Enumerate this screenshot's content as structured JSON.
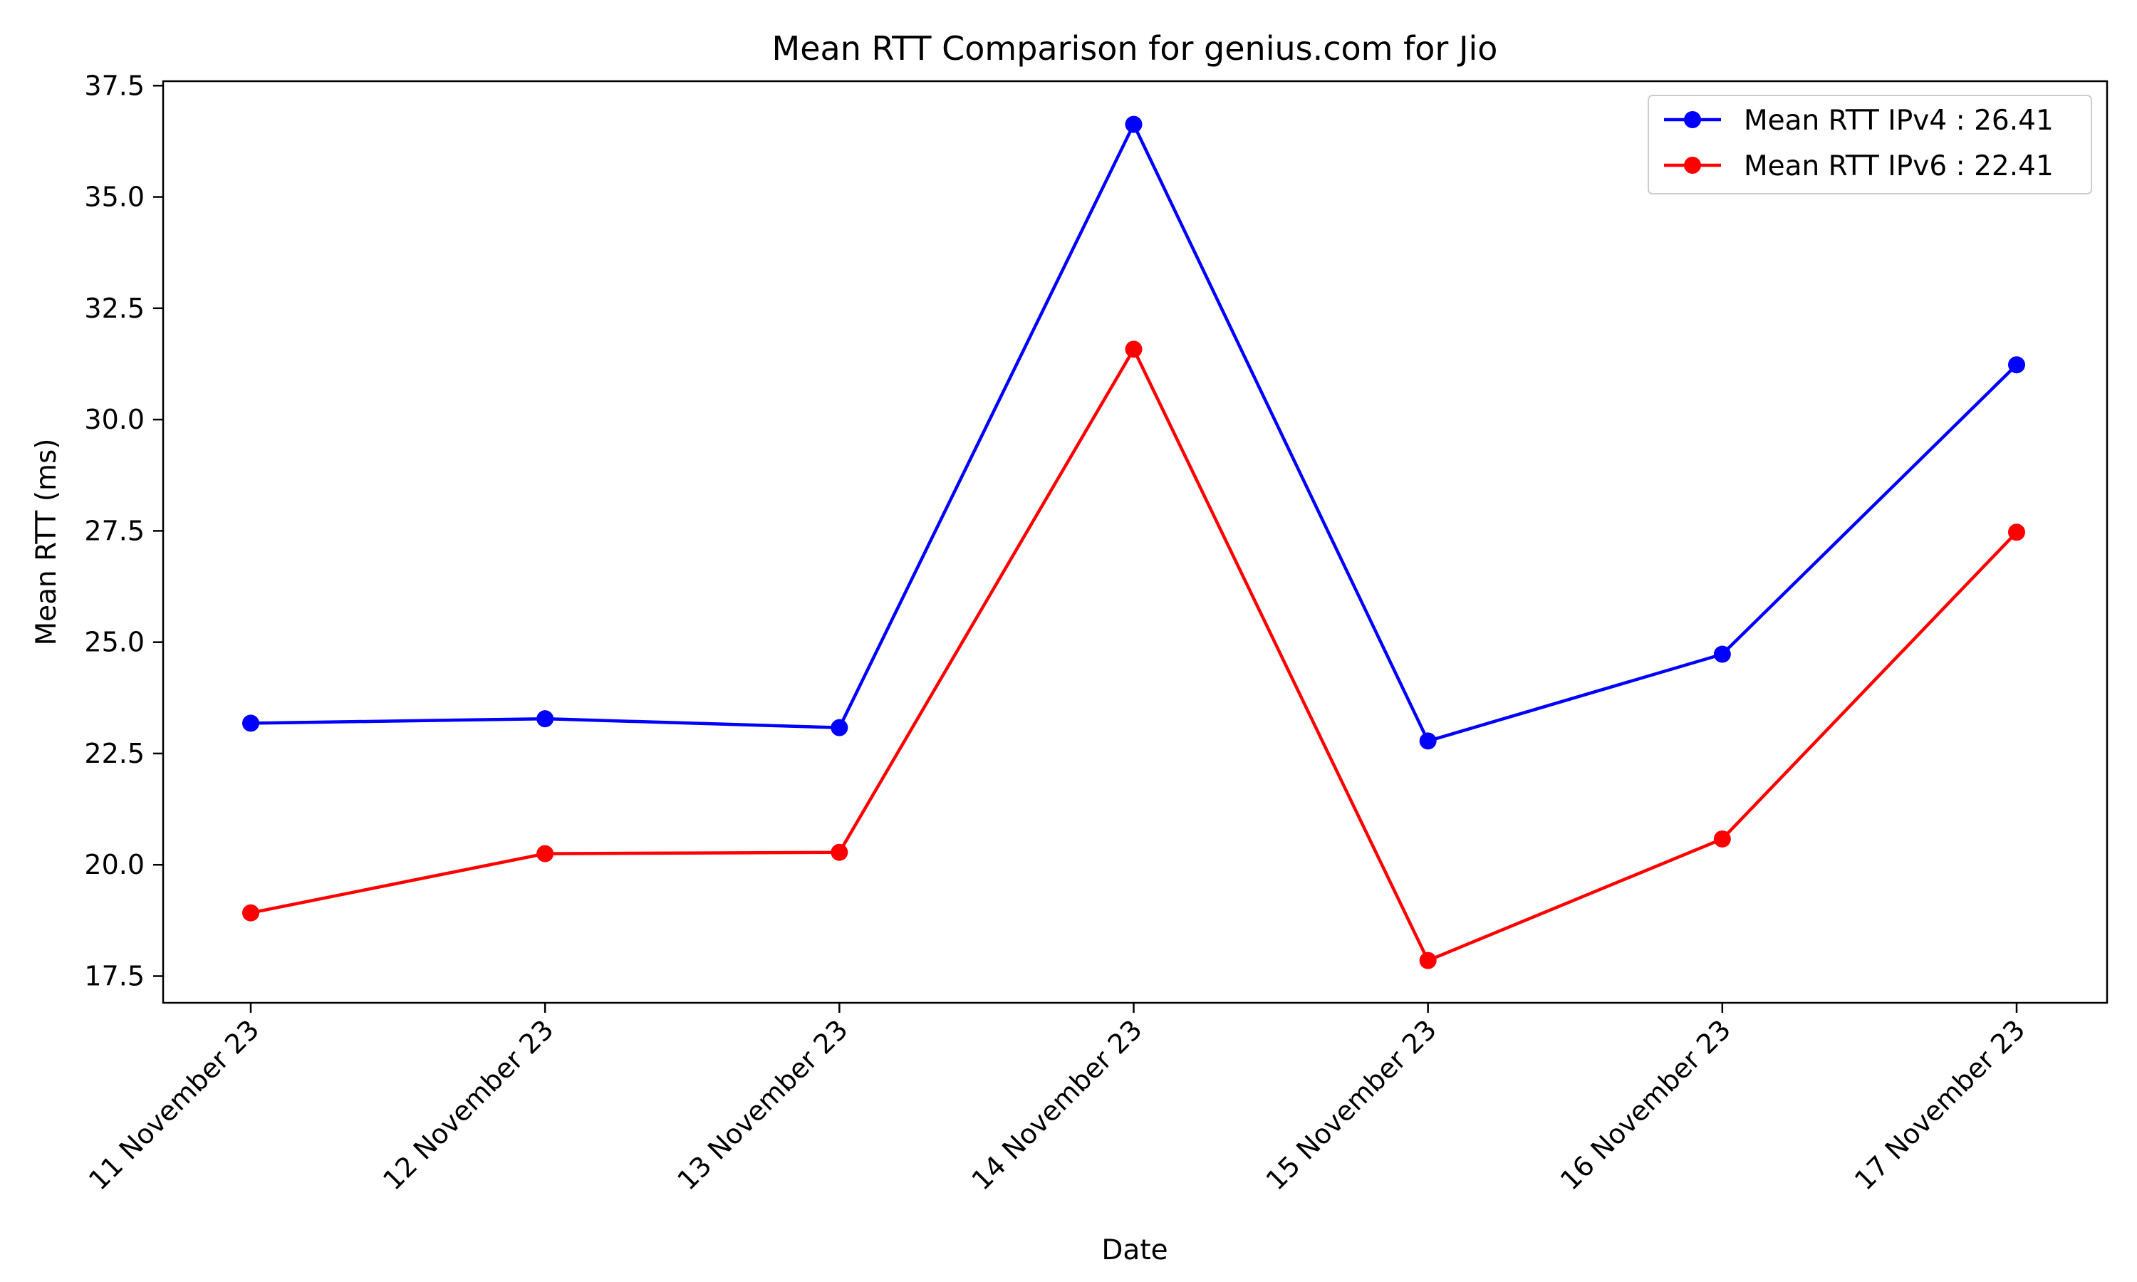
{
  "chart_data": {
    "type": "line",
    "title": "Mean RTT Comparison for genius.com for Jio",
    "xlabel": "Date",
    "ylabel": "Mean RTT (ms)",
    "categories": [
      "11 November 23",
      "12 November 23",
      "13 November 23",
      "14 November 23",
      "15 November 23",
      "16 November 23",
      "17 November 23"
    ],
    "ylim": [
      16.9,
      37.6
    ],
    "yticks": [
      17.5,
      20.0,
      22.5,
      25.0,
      27.5,
      30.0,
      32.5,
      35.0,
      37.5
    ],
    "ytick_labels": [
      "17.5",
      "20.0",
      "22.5",
      "25.0",
      "27.5",
      "30.0",
      "32.5",
      "35.0",
      "37.5"
    ],
    "grid": false,
    "legend_position": "top-right",
    "series": [
      {
        "name": "Mean RTT IPv4 : 26.41",
        "color": "#0000ff",
        "values": [
          23.18,
          23.28,
          23.08,
          36.63,
          22.78,
          24.73,
          31.23
        ]
      },
      {
        "name": "Mean RTT IPv6 : 22.41",
        "color": "#ff0000",
        "values": [
          18.92,
          20.25,
          20.28,
          31.58,
          17.85,
          20.58,
          27.47
        ]
      }
    ]
  }
}
